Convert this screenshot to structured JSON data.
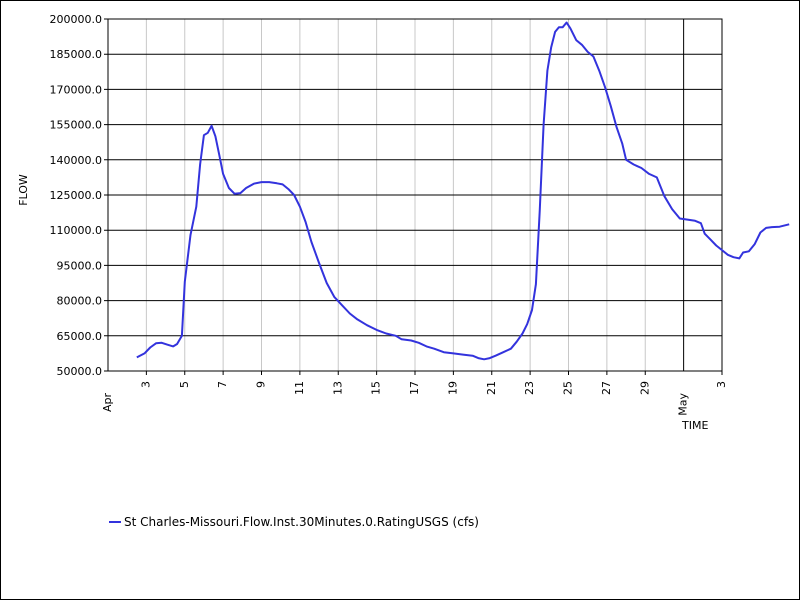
{
  "chart_data": {
    "type": "line",
    "xlabel": "TIME",
    "ylabel": "FLOW",
    "ylim": [
      50000,
      200000
    ],
    "y_ticks": [
      "50000.0",
      "65000.0",
      "80000.0",
      "95000.0",
      "110000.0",
      "125000.0",
      "140000.0",
      "155000.0",
      "170000.0",
      "185000.0",
      "200000.0"
    ],
    "x_range_days": [
      "Apr 1",
      "May 3"
    ],
    "x_tick_labels": [
      "3",
      "5",
      "7",
      "9",
      "11",
      "13",
      "15",
      "17",
      "19",
      "21",
      "23",
      "25",
      "27",
      "29",
      "3"
    ],
    "x_month_labels": [
      "Apr",
      "May"
    ],
    "grid": "vertical grey lines at odd days, horizontal black lines at y ticks",
    "legend_position": "bottom-left",
    "series": [
      {
        "name": "St Charles-Missouri.Flow.Inst.30Minutes.0.RatingUSGS (cfs)",
        "color": "#3333dd",
        "points": [
          [
            "Apr 2.5",
            55800
          ],
          [
            "Apr 2.9",
            57500
          ],
          [
            "Apr 3.2",
            60000
          ],
          [
            "Apr 3.5",
            61800
          ],
          [
            "Apr 3.8",
            62000
          ],
          [
            "Apr 4.1",
            61200
          ],
          [
            "Apr 4.4",
            60500
          ],
          [
            "Apr 4.6",
            61500
          ],
          [
            "Apr 4.85",
            65000
          ],
          [
            "Apr 5.0",
            88000
          ],
          [
            "Apr 5.3",
            108000
          ],
          [
            "Apr 5.6",
            120000
          ],
          [
            "Apr 5.8",
            138000
          ],
          [
            "Apr 6.0",
            150500
          ],
          [
            "Apr 6.2",
            151500
          ],
          [
            "Apr 6.4",
            154500
          ],
          [
            "Apr 6.6",
            150000
          ],
          [
            "Apr 6.8",
            142000
          ],
          [
            "Apr 7.0",
            134000
          ],
          [
            "Apr 7.3",
            128000
          ],
          [
            "Apr 7.6",
            125500
          ],
          [
            "Apr 7.9",
            125800
          ],
          [
            "Apr 8.2",
            128000
          ],
          [
            "Apr 8.6",
            129800
          ],
          [
            "Apr 9.0",
            130500
          ],
          [
            "Apr 9.4",
            130500
          ],
          [
            "Apr 9.8",
            130000
          ],
          [
            "Apr 10.1",
            129500
          ],
          [
            "Apr 10.4",
            127500
          ],
          [
            "Apr 10.7",
            125000
          ],
          [
            "Apr 11.0",
            120000
          ],
          [
            "Apr 11.3",
            113500
          ],
          [
            "Apr 11.6",
            105000
          ],
          [
            "Apr 12.0",
            96000
          ],
          [
            "Apr 12.4",
            87500
          ],
          [
            "Apr 12.8",
            81500
          ],
          [
            "Apr 13.2",
            78000
          ],
          [
            "Apr 13.6",
            74500
          ],
          [
            "Apr 14.0",
            72000
          ],
          [
            "Apr 14.5",
            69500
          ],
          [
            "Apr 15.0",
            67500
          ],
          [
            "Apr 15.5",
            66000
          ],
          [
            "Apr 16.0",
            65000
          ],
          [
            "Apr 16.3",
            63500
          ],
          [
            "Apr 16.8",
            63000
          ],
          [
            "Apr 17.2",
            62000
          ],
          [
            "Apr 17.6",
            60500
          ],
          [
            "Apr 18.0",
            59500
          ],
          [
            "Apr 18.5",
            58000
          ],
          [
            "Apr 19.0",
            57500
          ],
          [
            "Apr 19.5",
            57000
          ],
          [
            "Apr 20.0",
            56500
          ],
          [
            "Apr 20.3",
            55500
          ],
          [
            "Apr 20.6",
            55000
          ],
          [
            "Apr 20.9",
            55500
          ],
          [
            "Apr 21.2",
            56500
          ],
          [
            "Apr 21.6",
            58000
          ],
          [
            "Apr 22.0",
            59500
          ],
          [
            "Apr 22.3",
            62500
          ],
          [
            "Apr 22.6",
            66000
          ],
          [
            "Apr 22.85",
            70000
          ],
          [
            "Apr 23.1",
            76000
          ],
          [
            "Apr 23.3",
            87000
          ],
          [
            "Apr 23.5",
            118000
          ],
          [
            "Apr 23.7",
            155000
          ],
          [
            "Apr 23.9",
            178000
          ],
          [
            "Apr 24.1",
            188000
          ],
          [
            "Apr 24.3",
            194500
          ],
          [
            "Apr 24.5",
            196500
          ],
          [
            "Apr 24.7",
            196500
          ],
          [
            "Apr 24.9",
            198500
          ],
          [
            "Apr 25.1",
            196000
          ],
          [
            "Apr 25.4",
            191000
          ],
          [
            "Apr 25.7",
            189000
          ],
          [
            "Apr 26.0",
            186000
          ],
          [
            "Apr 26.3",
            184000
          ],
          [
            "Apr 26.6",
            178000
          ],
          [
            "Apr 26.9",
            171000
          ],
          [
            "Apr 27.2",
            163000
          ],
          [
            "Apr 27.5",
            154000
          ],
          [
            "Apr 27.8",
            147000
          ],
          [
            "Apr 28.0",
            140000
          ],
          [
            "Apr 28.4",
            138000
          ],
          [
            "Apr 28.8",
            136500
          ],
          [
            "Apr 29.2",
            134000
          ],
          [
            "Apr 29.6",
            132500
          ],
          [
            "Apr 30.0",
            124500
          ],
          [
            "Apr 30.4",
            119000
          ],
          [
            "Apr 30.8",
            115000
          ],
          [
            "May 1.2",
            114500
          ],
          [
            "May 1.6",
            114000
          ],
          [
            "May 1.9",
            113000
          ],
          [
            "May 2.1",
            108500
          ],
          [
            "May 2.4",
            106000
          ],
          [
            "May 2.7",
            103500
          ],
          [
            "May 3.0",
            101500
          ],
          [
            "May 3.3",
            99500
          ],
          [
            "May 3.6",
            98500
          ],
          [
            "May 3.9",
            98000
          ],
          [
            "May 4.1",
            100500
          ],
          [
            "May 4.4",
            101000
          ],
          [
            "May 4.7",
            104000
          ],
          [
            "May 5.0",
            109000
          ],
          [
            "May 5.3",
            111000
          ],
          [
            "May 5.6",
            111300
          ],
          [
            "May 6.0",
            111500
          ],
          [
            "May 6.5",
            112500
          ]
        ]
      }
    ]
  }
}
